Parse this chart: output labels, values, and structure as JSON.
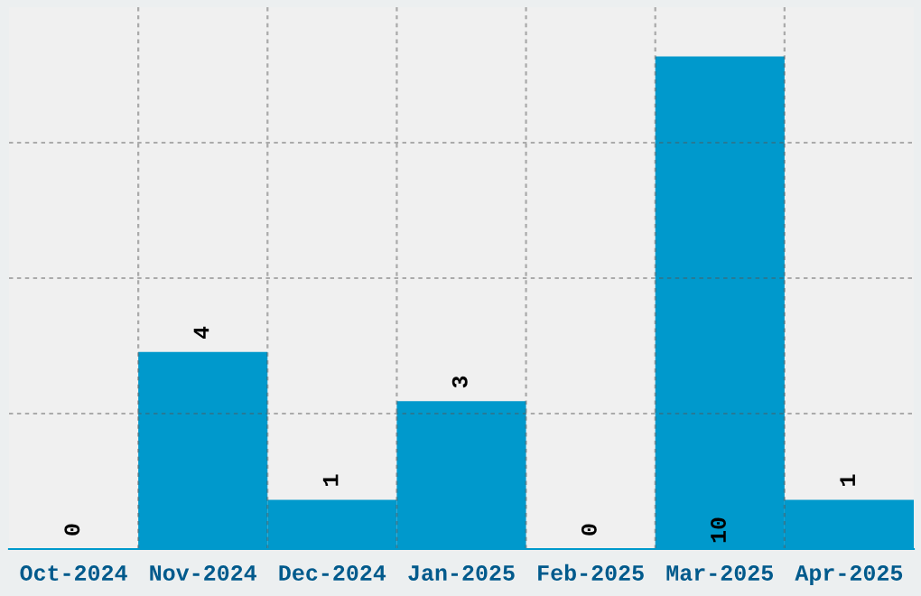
{
  "chart_data": {
    "type": "bar",
    "categories": [
      "Oct-2024",
      "Nov-2024",
      "Dec-2024",
      "Jan-2025",
      "Feb-2025",
      "Mar-2025",
      "Apr-2025"
    ],
    "values": [
      0,
      4,
      1,
      3,
      0,
      10,
      1
    ],
    "color": "#0099cc",
    "ylim": [
      0,
      11
    ],
    "yticks": [
      {
        "value": 2.75,
        "label": null
      },
      {
        "value": 5.5,
        "label": null
      },
      {
        "value": 8.25,
        "label": null
      }
    ],
    "grid": true,
    "data_labels": true
  }
}
